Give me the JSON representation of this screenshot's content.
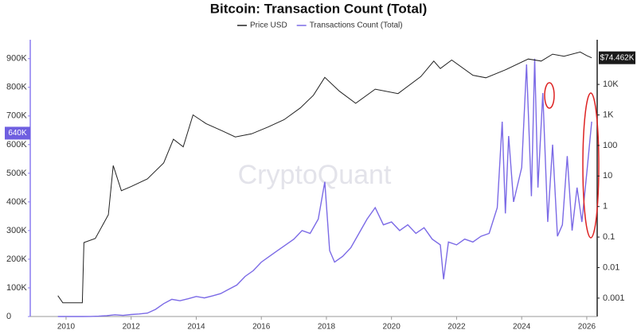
{
  "chart_data": {
    "type": "line",
    "title": "Bitcoin: Transaction Count (Total)",
    "watermark": "CryptoQuant",
    "xlim": [
      2008.9,
      2026.32
    ],
    "xticks": [
      2010,
      2012,
      2014,
      2016,
      2018,
      2020,
      2022,
      2024,
      2026
    ],
    "ylim": [
      0,
      966000
    ],
    "yticks": [
      {
        "value": 0,
        "label": "0"
      },
      {
        "value": 100000,
        "label": "100K"
      },
      {
        "value": 200000,
        "label": "200K"
      },
      {
        "value": 300000,
        "label": "300K"
      },
      {
        "value": 400000,
        "label": "400K"
      },
      {
        "value": 500000,
        "label": "500K"
      },
      {
        "value": 600000,
        "label": "600K"
      },
      {
        "value": 700000,
        "label": "700K"
      },
      {
        "value": 800000,
        "label": "800K"
      },
      {
        "value": 900000,
        "label": "900K"
      }
    ],
    "y2lim": [
      0.00025,
      290000
    ],
    "y2log": true,
    "y2ticks": [
      0.001,
      0.01,
      0.1,
      1,
      10,
      100,
      {
        "value": 1000,
        "label": "1K"
      },
      {
        "value": 10000,
        "label": "10K"
      }
    ],
    "crosshair": {
      "value": 640000,
      "label": "640K"
    },
    "last_price": {
      "value": 74462,
      "label": "$74.462K"
    },
    "series": [
      {
        "name": "Price USD",
        "color": "#222222",
        "axis": "y2",
        "x": [
          2009.75,
          2009.9,
          2010.5,
          2010.55,
          2010.9,
          2011.3,
          2011.45,
          2011.7,
          2012,
          2012.5,
          2013,
          2013.3,
          2013.6,
          2013.9,
          2014.3,
          2014.8,
          2015.2,
          2015.7,
          2016.2,
          2016.7,
          2017.2,
          2017.6,
          2017.95,
          2018.4,
          2018.9,
          2019.5,
          2020.2,
          2020.9,
          2021.3,
          2021.5,
          2021.85,
          2022.5,
          2022.9,
          2023.5,
          2024.2,
          2024.6,
          2024.95,
          2025.3,
          2025.8,
          2026.0,
          2026.15
        ],
        "values": [
          0.0012,
          0.0007,
          0.0007,
          0.066,
          0.09,
          0.54,
          22,
          3.3,
          4.5,
          8,
          27,
          160,
          90,
          1000,
          520,
          300,
          190,
          240,
          400,
          700,
          1700,
          4400,
          17000,
          6000,
          2400,
          7000,
          5000,
          18000,
          58000,
          33000,
          63000,
          20000,
          16500,
          30000,
          68000,
          58000,
          98000,
          84000,
          115000,
          88000,
          74462
        ]
      },
      {
        "name": "Transactions Count (Total)",
        "color": "#7b6ae6",
        "axis": "y",
        "x": [
          2009.75,
          2010,
          2010.25,
          2010.5,
          2010.75,
          2011,
          2011.25,
          2011.5,
          2011.75,
          2012,
          2012.25,
          2012.5,
          2012.75,
          2013,
          2013.25,
          2013.5,
          2013.75,
          2014,
          2014.25,
          2014.5,
          2014.75,
          2015,
          2015.25,
          2015.5,
          2015.75,
          2016,
          2016.25,
          2016.5,
          2016.75,
          2017,
          2017.25,
          2017.5,
          2017.75,
          2017.95,
          2018.1,
          2018.25,
          2018.5,
          2018.75,
          2019,
          2019.25,
          2019.5,
          2019.75,
          2020,
          2020.25,
          2020.5,
          2020.75,
          2021,
          2021.25,
          2021.5,
          2021.6,
          2021.75,
          2022,
          2022.25,
          2022.5,
          2022.75,
          2023,
          2023.25,
          2023.4,
          2023.5,
          2023.6,
          2023.75,
          2024,
          2024.15,
          2024.3,
          2024.4,
          2024.5,
          2024.65,
          2024.8,
          2024.95,
          2025.1,
          2025.25,
          2025.4,
          2025.55,
          2025.7,
          2025.85,
          2026,
          2026.15
        ],
        "values": [
          0,
          0,
          0,
          0,
          200,
          1000,
          3000,
          6000,
          4000,
          7000,
          9000,
          12000,
          25000,
          45000,
          60000,
          55000,
          62000,
          70000,
          65000,
          72000,
          80000,
          95000,
          110000,
          140000,
          160000,
          190000,
          210000,
          230000,
          250000,
          270000,
          300000,
          290000,
          340000,
          470000,
          230000,
          190000,
          210000,
          240000,
          290000,
          340000,
          380000,
          320000,
          330000,
          300000,
          320000,
          290000,
          310000,
          270000,
          250000,
          130000,
          260000,
          250000,
          270000,
          260000,
          280000,
          290000,
          380000,
          680000,
          360000,
          630000,
          400000,
          520000,
          880000,
          420000,
          900000,
          450000,
          780000,
          330000,
          600000,
          280000,
          320000,
          560000,
          300000,
          450000,
          330000,
          500000,
          680000
        ]
      }
    ]
  }
}
